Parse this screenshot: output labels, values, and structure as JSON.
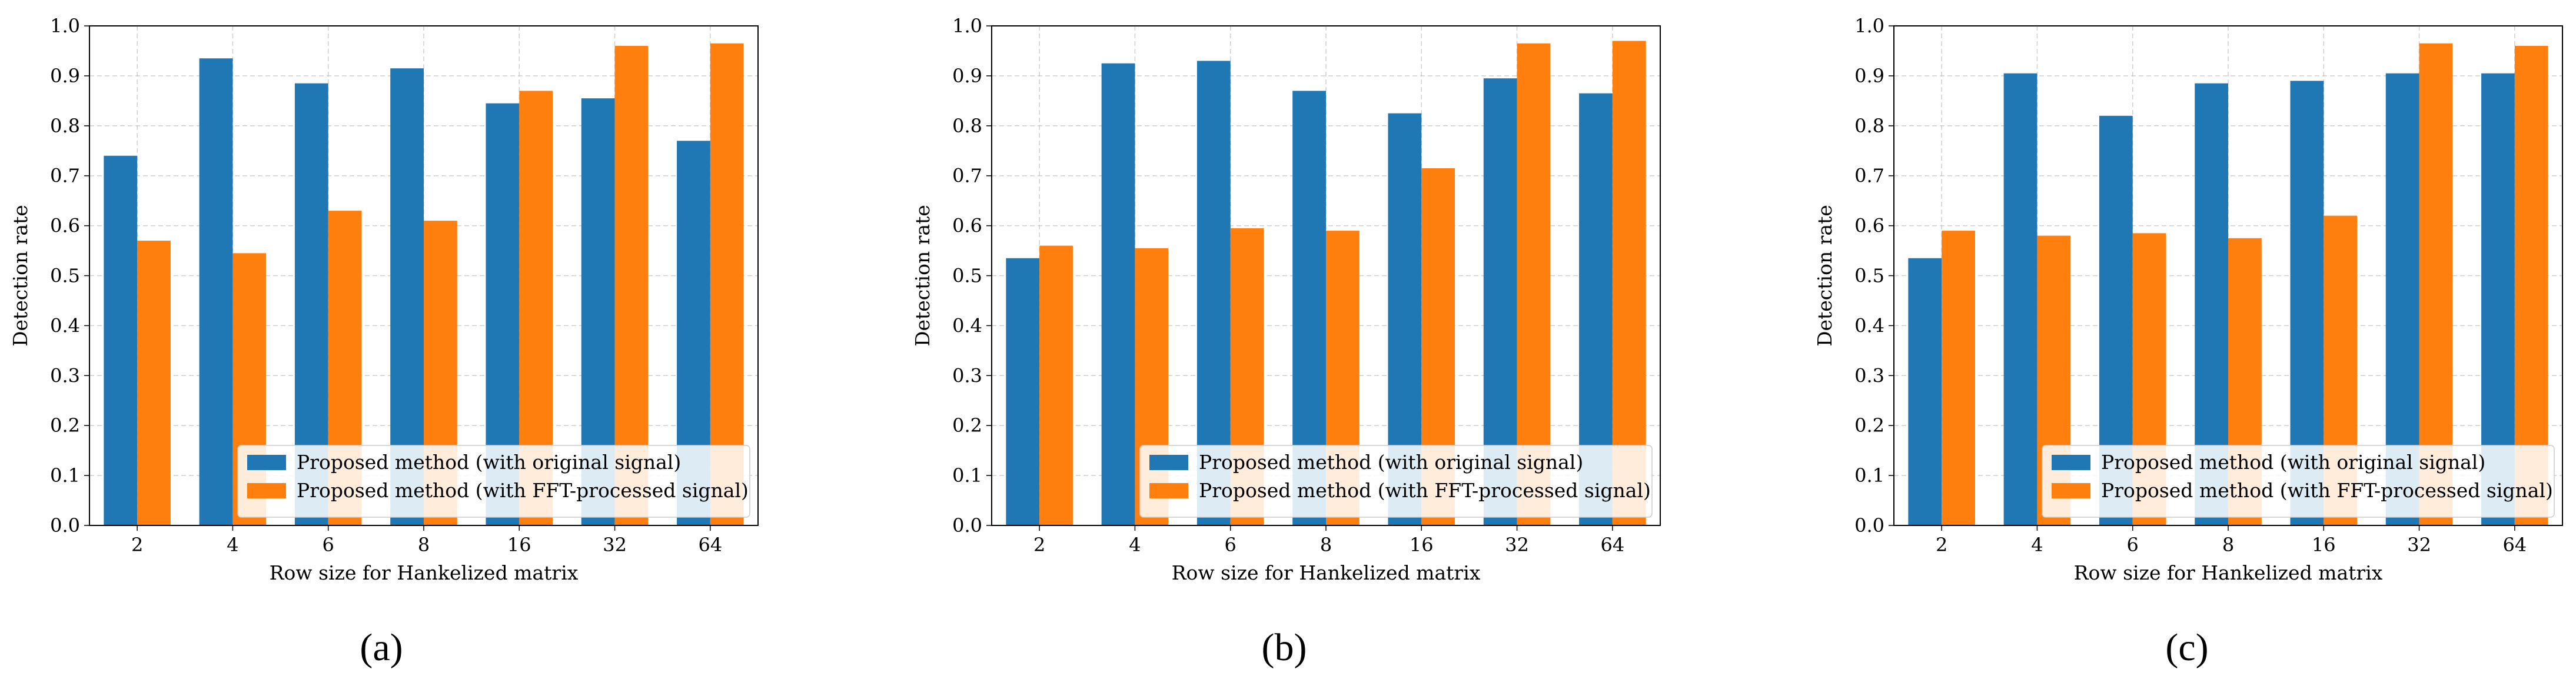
{
  "colors": {
    "original": "#1f77b4",
    "fft": "#ff7f0e",
    "grid": "#b0b0b0"
  },
  "chart_data": [
    {
      "type": "bar",
      "caption": "(a)",
      "categories": [
        "2",
        "4",
        "6",
        "8",
        "16",
        "32",
        "64"
      ],
      "series": [
        {
          "name": "Proposed method (with original signal)",
          "values": [
            0.74,
            0.935,
            0.885,
            0.915,
            0.845,
            0.855,
            0.77
          ]
        },
        {
          "name": "Proposed method (with FFT-processed signal)",
          "values": [
            0.57,
            0.545,
            0.63,
            0.61,
            0.87,
            0.96,
            0.965
          ]
        }
      ],
      "xlabel": "Row size for Hankelized matrix",
      "ylabel": "Detection rate",
      "ylim": [
        0,
        1.0
      ],
      "yticks": [
        "0.0",
        "0.1",
        "0.2",
        "0.3",
        "0.4",
        "0.5",
        "0.6",
        "0.7",
        "0.8",
        "0.9",
        "1.0"
      ],
      "grid": true,
      "legend_loc": "lower-right"
    },
    {
      "type": "bar",
      "caption": "(b)",
      "categories": [
        "2",
        "4",
        "6",
        "8",
        "16",
        "32",
        "64"
      ],
      "series": [
        {
          "name": "Proposed method (with original signal)",
          "values": [
            0.535,
            0.925,
            0.93,
            0.87,
            0.825,
            0.895,
            0.865
          ]
        },
        {
          "name": "Proposed method (with FFT-processed signal)",
          "values": [
            0.56,
            0.555,
            0.595,
            0.59,
            0.715,
            0.965,
            0.97
          ]
        }
      ],
      "xlabel": "Row size for Hankelized matrix",
      "ylabel": "Detection rate",
      "ylim": [
        0,
        1.0
      ],
      "yticks": [
        "0.0",
        "0.1",
        "0.2",
        "0.3",
        "0.4",
        "0.5",
        "0.6",
        "0.7",
        "0.8",
        "0.9",
        "1.0"
      ],
      "grid": true,
      "legend_loc": "lower-right"
    },
    {
      "type": "bar",
      "caption": "(c)",
      "categories": [
        "2",
        "4",
        "6",
        "8",
        "16",
        "32",
        "64"
      ],
      "series": [
        {
          "name": "Proposed method (with original signal)",
          "values": [
            0.535,
            0.905,
            0.82,
            0.885,
            0.89,
            0.905,
            0.905
          ]
        },
        {
          "name": "Proposed method (with FFT-processed signal)",
          "values": [
            0.59,
            0.58,
            0.585,
            0.575,
            0.62,
            0.965,
            0.96
          ]
        }
      ],
      "xlabel": "Row size for Hankelized matrix",
      "ylabel": "Detection rate",
      "ylim": [
        0,
        1.0
      ],
      "yticks": [
        "0.0",
        "0.1",
        "0.2",
        "0.3",
        "0.4",
        "0.5",
        "0.6",
        "0.7",
        "0.8",
        "0.9",
        "1.0"
      ],
      "grid": true,
      "legend_loc": "lower-right"
    }
  ]
}
